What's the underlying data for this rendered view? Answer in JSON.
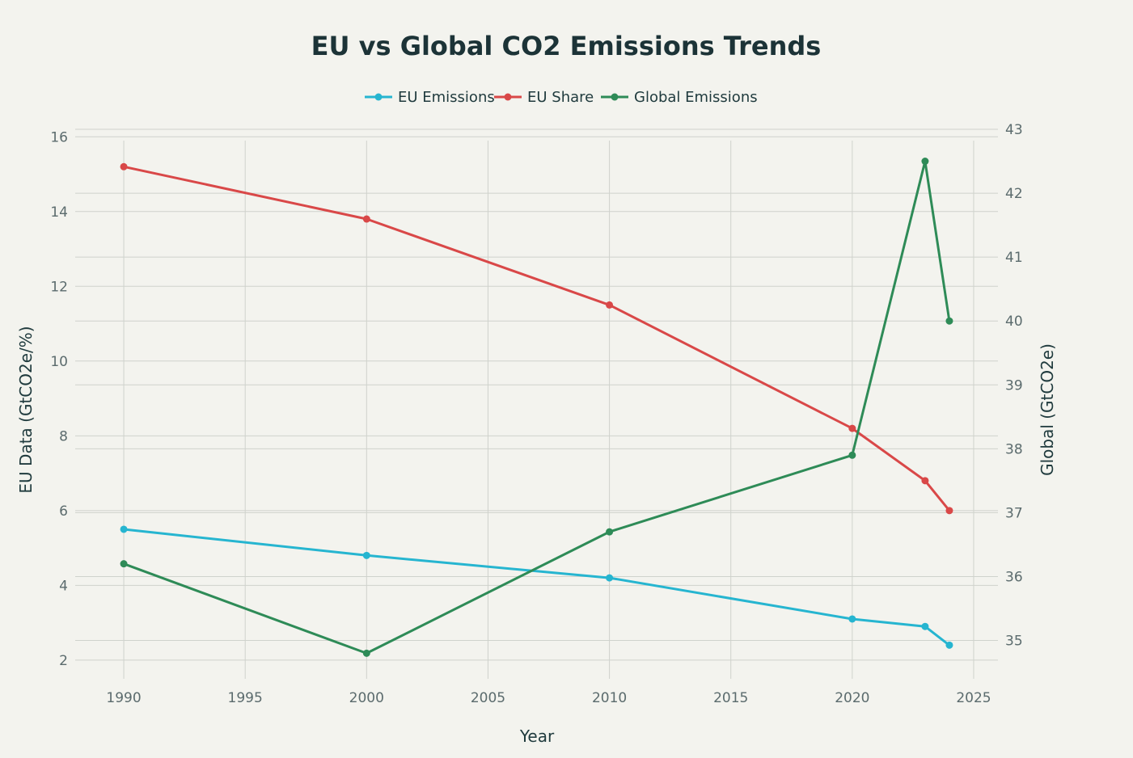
{
  "chart_data": {
    "type": "line",
    "title": "EU vs Global CO2 Emissions Trends",
    "xlabel": "Year",
    "ylabel_left": "EU Data (GtCO2e/%)",
    "ylabel_right": "Global (GtCO2e)",
    "xlim": [
      1988,
      2026
    ],
    "ylim_left": [
      1.5,
      16.2
    ],
    "ylim_right": [
      34.4,
      43
    ],
    "xticks": [
      1990,
      1995,
      2000,
      2005,
      2010,
      2015,
      2020,
      2025
    ],
    "yticks_left": [
      2,
      4,
      6,
      8,
      10,
      12,
      14,
      16
    ],
    "yticks_right": [
      35,
      36,
      37,
      38,
      39,
      40,
      41,
      42,
      43
    ],
    "grid": true,
    "legend_position": "top-center",
    "x": [
      1990,
      2000,
      2010,
      2020,
      2023,
      2024
    ],
    "series": [
      {
        "name": "EU Emissions",
        "axis": "left",
        "color": "#26b5d0",
        "values": [
          5.5,
          4.8,
          4.2,
          3.1,
          2.9,
          2.4
        ]
      },
      {
        "name": "EU Share",
        "axis": "left",
        "color": "#d94848",
        "values": [
          15.2,
          13.8,
          11.5,
          8.2,
          6.8,
          6.0
        ]
      },
      {
        "name": "Global Emissions",
        "axis": "right",
        "color": "#2e8b57",
        "values": [
          36.2,
          34.8,
          36.7,
          37.9,
          42.5,
          40.0
        ]
      }
    ]
  }
}
